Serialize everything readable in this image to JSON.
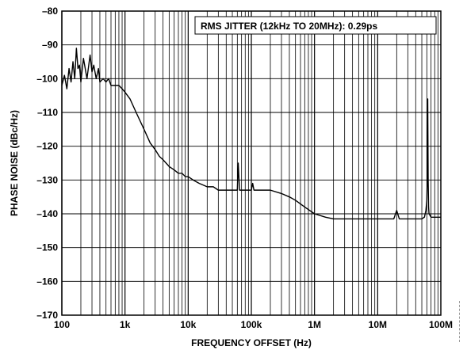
{
  "chart_data": {
    "type": "line",
    "title": "",
    "xlabel": "FREQUENCY OFFSET (Hz)",
    "ylabel": "PHASE NOISE (dBc/Hz)",
    "x_scale": "log",
    "xlim": [
      100,
      100000000
    ],
    "ylim": [
      -170,
      -80
    ],
    "grid": true,
    "x_ticks": [
      100,
      1000,
      10000,
      100000,
      1000000,
      10000000,
      100000000
    ],
    "x_tick_labels": [
      "100",
      "1k",
      "10k",
      "100k",
      "1M",
      "10M",
      "100M"
    ],
    "y_ticks": [
      -80,
      -90,
      -100,
      -110,
      -120,
      -130,
      -140,
      -150,
      -160,
      -170
    ],
    "y_tick_labels": [
      "–80",
      "–90",
      "–100",
      "–110",
      "–120",
      "–130",
      "–140",
      "–150",
      "–160",
      "–170"
    ],
    "annotation": "RMS JITTER (12kHz TO 20MHz): 0.29ps",
    "series": [
      {
        "x": [
          100,
          110,
          120,
          130,
          140,
          150,
          160,
          170,
          180,
          190,
          200,
          220,
          250,
          280,
          300,
          320,
          350,
          380,
          400,
          450,
          500,
          550,
          600,
          700,
          800,
          900,
          1000,
          1200,
          1500,
          2000,
          2500,
          3000,
          3500,
          4000,
          5000,
          6000,
          7000,
          8000,
          9000,
          10000,
          12000,
          15000,
          20000,
          25000,
          30000,
          40000,
          50000,
          60000,
          62000,
          65000,
          68000,
          70000,
          80000,
          90000,
          100000,
          105000,
          110000,
          120000,
          150000,
          200000,
          300000,
          400000,
          500000,
          700000,
          1000000,
          1500000,
          2000000,
          3000000,
          5000000,
          7000000,
          10000000,
          15000000,
          18000000,
          20000000,
          22000000,
          30000000,
          40000000,
          50000000,
          55000000,
          58000000,
          60000000,
          61000000,
          62000000,
          63000000,
          64000000,
          65000000,
          70000000,
          80000000,
          100000000
        ],
        "y": [
          -102,
          -99,
          -103,
          -97,
          -101,
          -95,
          -100,
          -91,
          -97,
          -96,
          -101,
          -94,
          -100,
          -93,
          -98,
          -96,
          -100,
          -97,
          -101,
          -100,
          -101,
          -100,
          -102,
          -102,
          -102,
          -103,
          -104,
          -106,
          -110,
          -115,
          -119,
          -121,
          -123,
          -124,
          -126,
          -127,
          -128,
          -128,
          -129,
          -129,
          -130,
          -131,
          -132,
          -132,
          -133,
          -133,
          -133,
          -133,
          -125,
          -133,
          -133,
          -133,
          -133,
          -133,
          -133,
          -131,
          -133,
          -133,
          -133,
          -133,
          -134,
          -135,
          -136,
          -138,
          -140,
          -141,
          -141.5,
          -141.5,
          -141.5,
          -141.5,
          -141.5,
          -141.5,
          -141.5,
          -139,
          -141.5,
          -141.5,
          -141.5,
          -141.5,
          -141,
          -139,
          -136,
          -130,
          -106,
          -130,
          -138,
          -140,
          -141,
          -141,
          -141
        ]
      }
    ]
  }
}
